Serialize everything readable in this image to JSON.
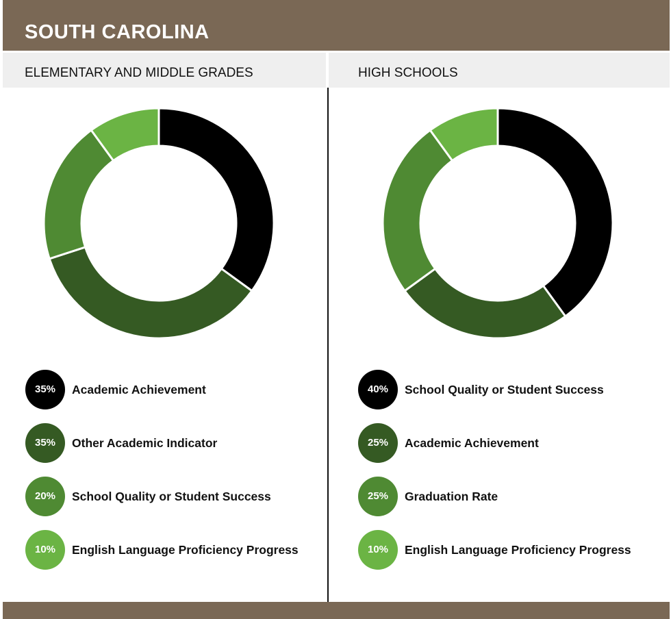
{
  "header": {
    "title": "SOUTH CAROLINA"
  },
  "colors": {
    "bar": "#7a6855",
    "black": "#000000",
    "dark_green": "#355a23",
    "mid_green": "#4f8a33",
    "light_green": "#6bb444"
  },
  "chart_data": [
    {
      "type": "pie",
      "title": "ELEMENTARY AND MIDDLE GRADES",
      "unit": "%",
      "categories": [
        "Academic Achievement",
        "Other Academic Indicator",
        "School Quality or Student Success",
        "English Language Proficiency Progress"
      ],
      "values": [
        35,
        35,
        20,
        10
      ],
      "labels": [
        "35%",
        "35%",
        "20%",
        "10%"
      ],
      "colors": [
        "#000000",
        "#355a23",
        "#4f8a33",
        "#6bb444"
      ],
      "legend": "bottom"
    },
    {
      "type": "pie",
      "title": "HIGH SCHOOLS",
      "unit": "%",
      "categories": [
        "School Quality or Student Success",
        "Academic Achievement",
        "Graduation Rate",
        "English Language Proficiency Progress"
      ],
      "values": [
        40,
        25,
        25,
        10
      ],
      "labels": [
        "40%",
        "25%",
        "25%",
        "10%"
      ],
      "colors": [
        "#000000",
        "#355a23",
        "#4f8a33",
        "#6bb444"
      ],
      "legend": "bottom"
    }
  ]
}
